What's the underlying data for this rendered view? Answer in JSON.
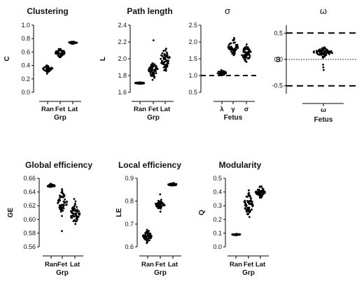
{
  "chart_data": [
    {
      "id": "clustering",
      "type": "scatter",
      "title": "Clustering",
      "ylabel": "C",
      "xlabel": "Grp",
      "categories": [
        "Ran",
        "Fet",
        "Lat"
      ],
      "ylim": [
        0.0,
        1.0
      ],
      "yticks": [
        "0.0",
        "0.2",
        "0.4",
        "0.6",
        "0.8",
        "1.0"
      ],
      "series": [
        {
          "center": 0.35,
          "spread": 0.025,
          "n": 45
        },
        {
          "center": 0.59,
          "spread": 0.03,
          "n": 55
        },
        {
          "center": 0.74,
          "spread": 0.008,
          "n": 40
        }
      ]
    },
    {
      "id": "path-length",
      "type": "scatter",
      "title": "Path length",
      "ylabel": "L",
      "xlabel": "Grp",
      "categories": [
        "Ran",
        "Fet",
        "Lat"
      ],
      "ylim": [
        1.6,
        2.4
      ],
      "yticks": [
        "1.6",
        "1.8",
        "2.0",
        "2.2",
        "2.4"
      ],
      "series": [
        {
          "center": 1.71,
          "spread": 0.005,
          "n": 30
        },
        {
          "center": 1.86,
          "spread": 0.045,
          "n": 60,
          "outliers": [
            2.22
          ]
        },
        {
          "center": 2.0,
          "spread": 0.07,
          "n": 60
        }
      ]
    },
    {
      "id": "sigma",
      "type": "scatter",
      "title": "σ",
      "xlabel": "Fetus",
      "categories": [
        "λ",
        "γ",
        "σ"
      ],
      "ylim": [
        0.5,
        2.5
      ],
      "yticks": [
        "0.5",
        "1.0",
        "1.5",
        "2.0",
        "2.5"
      ],
      "reference_line": 1.0,
      "series": [
        {
          "center": 1.08,
          "spread": 0.04,
          "n": 35
        },
        {
          "center": 1.85,
          "spread": 0.12,
          "n": 60
        },
        {
          "center": 1.65,
          "spread": 0.13,
          "n": 60
        }
      ]
    },
    {
      "id": "omega",
      "type": "scatter",
      "title": "ω",
      "ylabel": "ω",
      "xlabel": "Fetus",
      "categories": [
        "ω"
      ],
      "ylim": [
        -0.65,
        0.65
      ],
      "yticks": [
        "-0.5",
        "0.0",
        "0.5"
      ],
      "dashed_lines": [
        0.5,
        -0.5
      ],
      "dotted_line": 0.0,
      "series": [
        {
          "center": 0.14,
          "spread": 0.04,
          "n": 70,
          "outliers": [
            -0.2,
            -0.15,
            -0.1,
            0.22
          ]
        }
      ]
    },
    {
      "id": "global-efficiency",
      "type": "scatter",
      "title": "Global efficiency",
      "ylabel": "GE",
      "xlabel": "Grp",
      "categories": [
        "Ran",
        "Fet",
        "Lat"
      ],
      "ylim": [
        0.56,
        0.66
      ],
      "yticks": [
        "0.56",
        "0.58",
        "0.60",
        "0.62",
        "0.64",
        "0.66"
      ],
      "series": [
        {
          "center": 0.649,
          "spread": 0.001,
          "n": 40
        },
        {
          "center": 0.625,
          "spread": 0.008,
          "n": 60,
          "outliers": [
            0.583
          ]
        },
        {
          "center": 0.608,
          "spread": 0.007,
          "n": 60
        }
      ]
    },
    {
      "id": "local-efficiency",
      "type": "scatter",
      "title": "Local efficiency",
      "ylabel": "LE",
      "xlabel": "Grp",
      "categories": [
        "Ran",
        "Fet",
        "Lat"
      ],
      "ylim": [
        0.6,
        0.9
      ],
      "yticks": [
        "0.6",
        "0.7",
        "0.8",
        "0.9"
      ],
      "series": [
        {
          "center": 0.645,
          "spread": 0.012,
          "n": 60
        },
        {
          "center": 0.785,
          "spread": 0.012,
          "n": 55,
          "outliers": [
            0.83
          ]
        },
        {
          "center": 0.873,
          "spread": 0.003,
          "n": 40
        }
      ]
    },
    {
      "id": "modularity",
      "type": "scatter",
      "title": "Modularity",
      "ylabel": "Q",
      "xlabel": "Grp",
      "categories": [
        "Ran",
        "Fet",
        "Lat"
      ],
      "ylim": [
        0.0,
        0.5
      ],
      "yticks": [
        "0.0",
        "0.1",
        "0.2",
        "0.3",
        "0.4",
        "0.5"
      ],
      "series": [
        {
          "center": 0.09,
          "spread": 0.003,
          "n": 30
        },
        {
          "center": 0.31,
          "spread": 0.04,
          "n": 60
        },
        {
          "center": 0.4,
          "spread": 0.02,
          "n": 55
        }
      ]
    }
  ]
}
